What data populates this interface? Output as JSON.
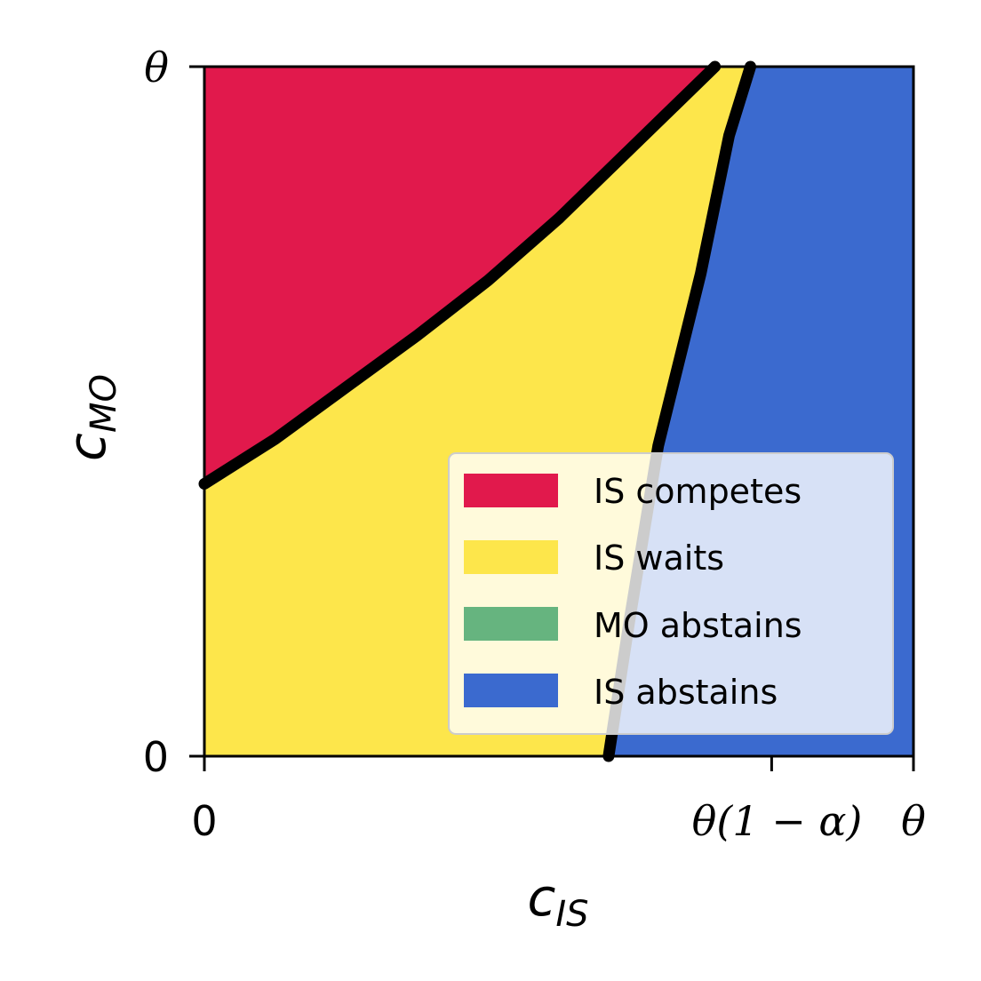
{
  "chart_data": {
    "type": "area",
    "title": "",
    "xlabel": {
      "main": "c",
      "sub": "IS"
    },
    "ylabel": {
      "main": "c",
      "sub": "MO"
    },
    "xlim": [
      0,
      1
    ],
    "ylim": [
      0,
      1
    ],
    "x_ticks": [
      {
        "value": 0,
        "label": "0"
      },
      {
        "value": 0.8,
        "label": "θ(1 − α)"
      },
      {
        "value": 1,
        "label": "θ"
      }
    ],
    "y_ticks": [
      {
        "value": 0,
        "label": "0"
      },
      {
        "value": 1,
        "label": "θ"
      }
    ],
    "boundaries": [
      {
        "name": "compete-wait",
        "points": [
          [
            0,
            0.395
          ],
          [
            0.1,
            0.46
          ],
          [
            0.2,
            0.535
          ],
          [
            0.3,
            0.61
          ],
          [
            0.4,
            0.69
          ],
          [
            0.5,
            0.78
          ],
          [
            0.6,
            0.88
          ],
          [
            0.72,
            1.0
          ]
        ]
      },
      {
        "name": "wait-abstain",
        "points": [
          [
            0.57,
            0
          ],
          [
            0.585,
            0.1
          ],
          [
            0.6,
            0.2
          ],
          [
            0.64,
            0.45
          ],
          [
            0.7,
            0.7
          ],
          [
            0.74,
            0.9
          ],
          [
            0.77,
            1.0
          ]
        ]
      }
    ],
    "regions": [
      {
        "label": "IS competes",
        "color": "#e1194c"
      },
      {
        "label": "IS waits",
        "color": "#fde64b"
      },
      {
        "label": "MO abstains",
        "color": "#66b47f"
      },
      {
        "label": "IS abstains",
        "color": "#3b6acf"
      }
    ],
    "legend": {
      "position": "lower-right"
    },
    "grid": false
  }
}
